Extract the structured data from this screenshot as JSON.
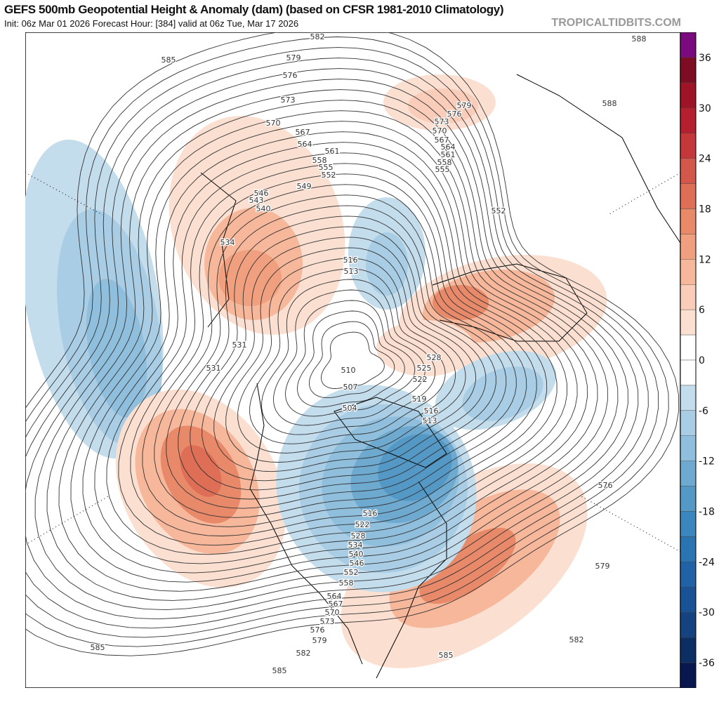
{
  "header": {
    "title": "GEFS 500mb Geopotential Height & Anomaly (dam) (based on CFSR 1981-2010 Climatology)",
    "subtitle": "Init: 06z Mar 01 2026   Forecast Hour: [384]   valid at 06z Tue, Mar 17 2026",
    "brand": "TROPICALTIDBITS.COM"
  },
  "colorbar": {
    "ticks": [
      "36",
      "30",
      "24",
      "18",
      "12",
      "6",
      "0",
      "-6",
      "-12",
      "-18",
      "-24",
      "-30",
      "-36"
    ],
    "colors": [
      "#7a0a7d",
      "#7c0d23",
      "#9e1427",
      "#b5202e",
      "#c4373a",
      "#d3574a",
      "#de6e56",
      "#e88a6a",
      "#f0a07f",
      "#f6b79b",
      "#f9cdb9",
      "#fbe0d2",
      "#ffffff",
      "#ffffff",
      "#c4dded",
      "#a8cde4",
      "#8fbfdc",
      "#6ea9d0",
      "#5498c6",
      "#3b86bc",
      "#2b74b2",
      "#2162a6",
      "#1a5296",
      "#14437f",
      "#0c2f63",
      "#08184e"
    ]
  },
  "contour_labels": [
    "582",
    "585",
    "579",
    "576",
    "573",
    "570",
    "567",
    "564",
    "561",
    "558",
    "555",
    "552",
    "549",
    "546",
    "543",
    "540",
    "534",
    "516",
    "513",
    "531",
    "531",
    "510",
    "507",
    "504",
    "528",
    "525",
    "522",
    "519",
    "516",
    "513",
    "579",
    "576",
    "573",
    "570",
    "567",
    "564",
    "561",
    "558",
    "555",
    "552",
    "588",
    "588",
    "576",
    "579",
    "582",
    "585",
    "585",
    "585",
    "582",
    "579",
    "576",
    "573",
    "570",
    "567",
    "564",
    "558",
    "552",
    "546",
    "540",
    "534",
    "528",
    "522",
    "516"
  ]
}
